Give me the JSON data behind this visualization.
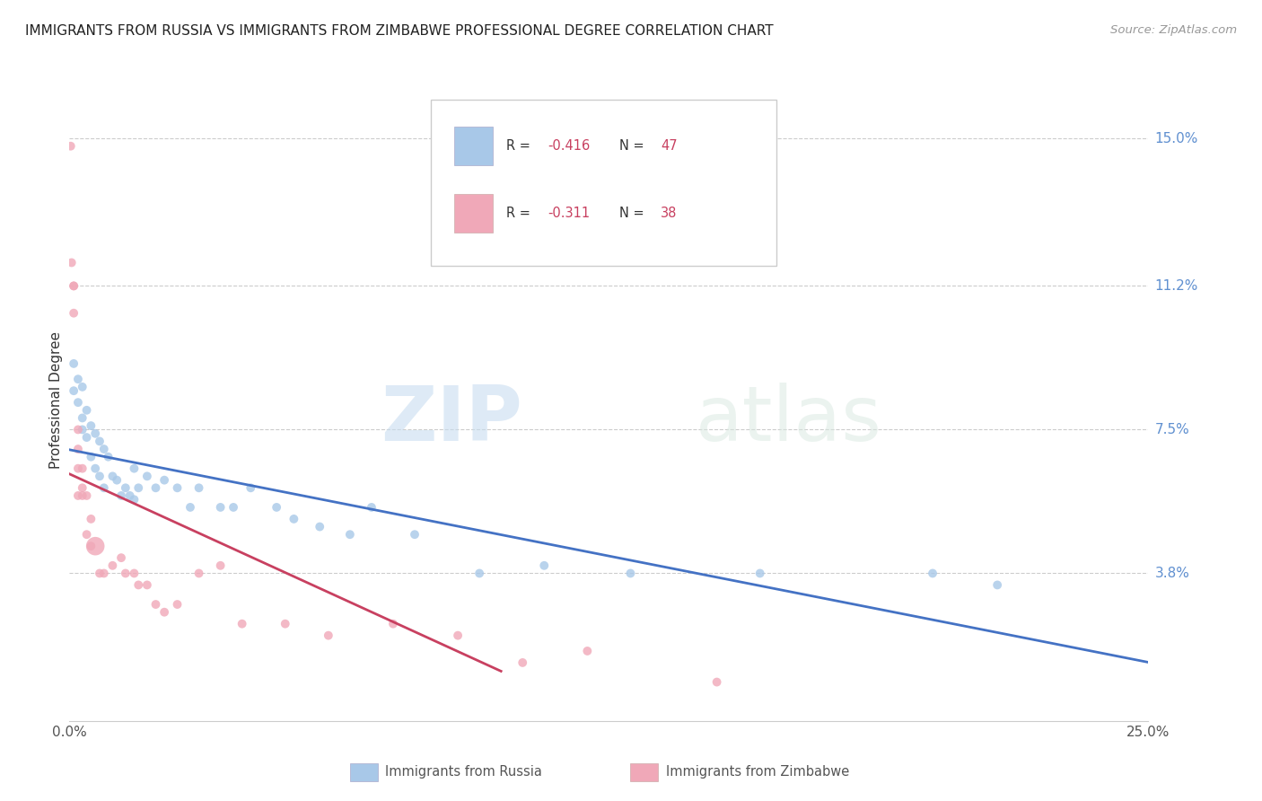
{
  "title": "IMMIGRANTS FROM RUSSIA VS IMMIGRANTS FROM ZIMBABWE PROFESSIONAL DEGREE CORRELATION CHART",
  "source": "Source: ZipAtlas.com",
  "ylabel": "Professional Degree",
  "right_ytick_labels": [
    "15.0%",
    "11.2%",
    "7.5%",
    "3.8%"
  ],
  "right_ytick_values": [
    0.15,
    0.112,
    0.075,
    0.038
  ],
  "xlim": [
    0.0,
    0.25
  ],
  "ylim": [
    0.0,
    0.165
  ],
  "russia_label": "Immigrants from Russia",
  "zimbabwe_label": "Immigrants from Zimbabwe",
  "russia_r": "-0.416",
  "russia_n": "47",
  "zimbabwe_r": "-0.311",
  "zimbabwe_n": "38",
  "russia_color": "#a8c8e8",
  "zimbabwe_color": "#f0a8b8",
  "russia_line_color": "#4472C4",
  "zimbabwe_line_color": "#C84060",
  "watermark_zip": "ZIP",
  "watermark_atlas": "atlas",
  "russia_x": [
    0.001,
    0.001,
    0.002,
    0.002,
    0.003,
    0.003,
    0.003,
    0.004,
    0.004,
    0.005,
    0.005,
    0.006,
    0.006,
    0.007,
    0.007,
    0.008,
    0.008,
    0.009,
    0.01,
    0.011,
    0.012,
    0.013,
    0.014,
    0.015,
    0.015,
    0.016,
    0.018,
    0.02,
    0.022,
    0.025,
    0.028,
    0.03,
    0.035,
    0.038,
    0.042,
    0.048,
    0.052,
    0.058,
    0.065,
    0.07,
    0.08,
    0.095,
    0.11,
    0.13,
    0.16,
    0.2,
    0.215
  ],
  "russia_y": [
    0.092,
    0.085,
    0.088,
    0.082,
    0.086,
    0.078,
    0.075,
    0.08,
    0.073,
    0.076,
    0.068,
    0.074,
    0.065,
    0.072,
    0.063,
    0.07,
    0.06,
    0.068,
    0.063,
    0.062,
    0.058,
    0.06,
    0.058,
    0.065,
    0.057,
    0.06,
    0.063,
    0.06,
    0.062,
    0.06,
    0.055,
    0.06,
    0.055,
    0.055,
    0.06,
    0.055,
    0.052,
    0.05,
    0.048,
    0.055,
    0.048,
    0.038,
    0.04,
    0.038,
    0.038,
    0.038,
    0.035
  ],
  "russia_sizes": [
    50,
    50,
    50,
    50,
    50,
    50,
    50,
    50,
    50,
    50,
    50,
    50,
    50,
    50,
    50,
    50,
    50,
    50,
    50,
    50,
    50,
    50,
    50,
    50,
    50,
    50,
    50,
    50,
    50,
    50,
    50,
    50,
    50,
    50,
    50,
    50,
    50,
    50,
    50,
    50,
    50,
    50,
    50,
    50,
    50,
    50,
    50
  ],
  "zimbabwe_x": [
    0.0003,
    0.0005,
    0.001,
    0.001,
    0.001,
    0.002,
    0.002,
    0.002,
    0.002,
    0.003,
    0.003,
    0.003,
    0.004,
    0.004,
    0.005,
    0.005,
    0.006,
    0.007,
    0.008,
    0.01,
    0.012,
    0.013,
    0.015,
    0.016,
    0.018,
    0.02,
    0.022,
    0.025,
    0.03,
    0.035,
    0.04,
    0.05,
    0.06,
    0.075,
    0.09,
    0.105,
    0.12,
    0.15
  ],
  "zimbabwe_y": [
    0.148,
    0.118,
    0.112,
    0.112,
    0.105,
    0.075,
    0.07,
    0.065,
    0.058,
    0.065,
    0.06,
    0.058,
    0.058,
    0.048,
    0.052,
    0.045,
    0.045,
    0.038,
    0.038,
    0.04,
    0.042,
    0.038,
    0.038,
    0.035,
    0.035,
    0.03,
    0.028,
    0.03,
    0.038,
    0.04,
    0.025,
    0.025,
    0.022,
    0.025,
    0.022,
    0.015,
    0.018,
    0.01
  ],
  "zimbabwe_sizes": [
    50,
    50,
    50,
    50,
    50,
    50,
    50,
    50,
    50,
    50,
    50,
    50,
    50,
    50,
    50,
    50,
    220,
    50,
    50,
    50,
    50,
    50,
    50,
    50,
    50,
    50,
    50,
    50,
    50,
    50,
    50,
    50,
    50,
    50,
    50,
    50,
    50,
    50
  ]
}
